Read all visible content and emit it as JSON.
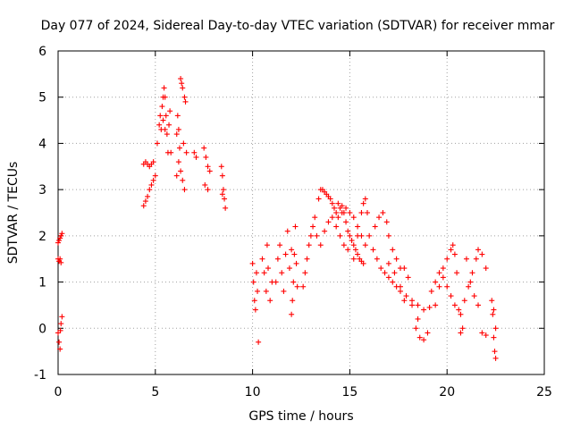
{
  "chart_data": {
    "type": "scatter",
    "title": "Day 077 of 2024, Sidereal Day-to-day VTEC variation (SDTVAR) for receiver mmar",
    "xlabel": "GPS time / hours",
    "ylabel": "SDTVAR / TECUs",
    "xlim": [
      0,
      25
    ],
    "ylim": [
      -1,
      6
    ],
    "xticks": [
      0,
      5,
      10,
      15,
      20,
      25
    ],
    "xtick_labels": [
      "0",
      "5",
      "10",
      "15",
      "20",
      "25"
    ],
    "yticks": [
      -1,
      0,
      1,
      2,
      3,
      4,
      5,
      6
    ],
    "ytick_labels": [
      "-1",
      "0",
      "1",
      "2",
      "3",
      "4",
      "5",
      "6"
    ],
    "grid": true,
    "marker": "+",
    "color": "#ff0000",
    "series": [
      {
        "name": "SDTVAR",
        "points": [
          [
            0.0,
            -0.1
          ],
          [
            0.05,
            -0.3
          ],
          [
            0.1,
            -0.45
          ],
          [
            0.15,
            0.1
          ],
          [
            0.2,
            0.25
          ],
          [
            0.12,
            -0.05
          ],
          [
            0.0,
            1.5
          ],
          [
            0.05,
            1.45
          ],
          [
            0.1,
            1.5
          ],
          [
            0.15,
            1.42
          ],
          [
            0.0,
            1.85
          ],
          [
            0.05,
            1.9
          ],
          [
            0.1,
            1.95
          ],
          [
            0.15,
            2.0
          ],
          [
            0.2,
            2.05
          ],
          [
            4.4,
            2.65
          ],
          [
            4.5,
            2.75
          ],
          [
            4.6,
            2.85
          ],
          [
            4.7,
            3.0
          ],
          [
            4.8,
            3.1
          ],
          [
            4.9,
            3.2
          ],
          [
            5.0,
            3.3
          ],
          [
            4.4,
            3.55
          ],
          [
            4.5,
            3.6
          ],
          [
            4.6,
            3.55
          ],
          [
            4.7,
            3.5
          ],
          [
            4.8,
            3.55
          ],
          [
            4.9,
            3.6
          ],
          [
            5.1,
            4.0
          ],
          [
            5.2,
            4.4
          ],
          [
            5.25,
            4.6
          ],
          [
            5.3,
            4.3
          ],
          [
            5.35,
            4.8
          ],
          [
            5.4,
            5.0
          ],
          [
            5.45,
            5.2
          ],
          [
            5.5,
            5.0
          ],
          [
            5.55,
            4.6
          ],
          [
            5.6,
            4.2
          ],
          [
            5.65,
            3.8
          ],
          [
            5.7,
            4.4
          ],
          [
            5.75,
            4.7
          ],
          [
            5.8,
            3.8
          ],
          [
            5.4,
            4.5
          ],
          [
            5.5,
            4.3
          ],
          [
            6.1,
            4.2
          ],
          [
            6.15,
            4.6
          ],
          [
            6.2,
            4.3
          ],
          [
            6.3,
            5.4
          ],
          [
            6.35,
            5.3
          ],
          [
            6.4,
            5.2
          ],
          [
            6.5,
            5.0
          ],
          [
            6.55,
            4.9
          ],
          [
            6.1,
            3.3
          ],
          [
            6.2,
            3.6
          ],
          [
            6.3,
            3.4
          ],
          [
            6.4,
            3.2
          ],
          [
            6.5,
            3.0
          ],
          [
            6.6,
            3.8
          ],
          [
            6.25,
            3.9
          ],
          [
            6.45,
            4.0
          ],
          [
            7.0,
            3.8
          ],
          [
            7.1,
            3.7
          ],
          [
            7.5,
            3.9
          ],
          [
            7.6,
            3.7
          ],
          [
            7.7,
            3.5
          ],
          [
            7.8,
            3.4
          ],
          [
            7.55,
            3.1
          ],
          [
            7.7,
            3.0
          ],
          [
            8.4,
            3.5
          ],
          [
            8.45,
            3.3
          ],
          [
            8.5,
            3.0
          ],
          [
            8.55,
            2.8
          ],
          [
            8.6,
            2.6
          ],
          [
            8.45,
            2.9
          ],
          [
            10.0,
            1.4
          ],
          [
            10.05,
            1.0
          ],
          [
            10.1,
            0.6
          ],
          [
            10.15,
            0.4
          ],
          [
            10.2,
            1.2
          ],
          [
            10.25,
            0.8
          ],
          [
            10.3,
            -0.3
          ],
          [
            10.5,
            1.5
          ],
          [
            10.6,
            1.2
          ],
          [
            10.7,
            0.8
          ],
          [
            10.8,
            1.3
          ],
          [
            10.9,
            0.6
          ],
          [
            11.0,
            1.0
          ],
          [
            10.75,
            1.8
          ],
          [
            11.2,
            1.0
          ],
          [
            11.3,
            1.5
          ],
          [
            11.4,
            1.8
          ],
          [
            11.5,
            1.2
          ],
          [
            11.6,
            0.8
          ],
          [
            11.7,
            1.6
          ],
          [
            11.8,
            2.1
          ],
          [
            11.9,
            1.3
          ],
          [
            12.0,
            0.3
          ],
          [
            12.05,
            0.6
          ],
          [
            12.1,
            1.0
          ],
          [
            12.15,
            1.6
          ],
          [
            12.2,
            2.2
          ],
          [
            12.25,
            1.4
          ],
          [
            12.3,
            0.9
          ],
          [
            12.0,
            1.7
          ],
          [
            12.6,
            0.9
          ],
          [
            12.7,
            1.2
          ],
          [
            12.8,
            1.5
          ],
          [
            12.9,
            1.8
          ],
          [
            13.0,
            2.0
          ],
          [
            13.1,
            2.2
          ],
          [
            13.2,
            2.4
          ],
          [
            13.3,
            2.0
          ],
          [
            13.4,
            2.8
          ],
          [
            13.5,
            3.0
          ],
          [
            13.6,
            3.0
          ],
          [
            13.7,
            2.95
          ],
          [
            13.8,
            2.9
          ],
          [
            13.9,
            2.85
          ],
          [
            14.0,
            2.8
          ],
          [
            14.1,
            2.7
          ],
          [
            14.2,
            2.6
          ],
          [
            14.3,
            2.5
          ],
          [
            14.4,
            2.4
          ],
          [
            14.5,
            2.6
          ],
          [
            14.6,
            2.65
          ],
          [
            14.7,
            2.5
          ],
          [
            14.8,
            2.3
          ],
          [
            14.9,
            2.1
          ],
          [
            15.0,
            2.0
          ],
          [
            15.1,
            1.9
          ],
          [
            15.2,
            1.8
          ],
          [
            15.3,
            1.7
          ],
          [
            15.4,
            1.6
          ],
          [
            15.5,
            1.5
          ],
          [
            15.6,
            1.45
          ],
          [
            15.7,
            1.4
          ],
          [
            13.5,
            1.8
          ],
          [
            13.7,
            2.1
          ],
          [
            13.9,
            2.3
          ],
          [
            14.1,
            2.4
          ],
          [
            14.3,
            2.2
          ],
          [
            14.5,
            2.0
          ],
          [
            14.7,
            1.8
          ],
          [
            14.9,
            1.7
          ],
          [
            14.4,
            2.7
          ],
          [
            14.6,
            2.5
          ],
          [
            14.8,
            2.6
          ],
          [
            15.0,
            2.5
          ],
          [
            15.2,
            2.4
          ],
          [
            15.4,
            2.2
          ],
          [
            15.6,
            2.0
          ],
          [
            15.8,
            1.8
          ],
          [
            15.2,
            1.5
          ],
          [
            15.4,
            2.0
          ],
          [
            15.6,
            2.5
          ],
          [
            15.7,
            2.7
          ],
          [
            15.8,
            2.8
          ],
          [
            15.9,
            2.5
          ],
          [
            16.0,
            2.0
          ],
          [
            16.2,
            1.7
          ],
          [
            16.3,
            2.2
          ],
          [
            16.5,
            2.4
          ],
          [
            16.7,
            2.5
          ],
          [
            16.9,
            2.3
          ],
          [
            17.0,
            2.0
          ],
          [
            17.2,
            1.7
          ],
          [
            17.4,
            1.5
          ],
          [
            17.6,
            1.3
          ],
          [
            16.4,
            1.5
          ],
          [
            16.6,
            1.3
          ],
          [
            16.8,
            1.2
          ],
          [
            17.0,
            1.1
          ],
          [
            17.2,
            1.0
          ],
          [
            17.4,
            0.9
          ],
          [
            17.6,
            0.8
          ],
          [
            17.8,
            0.6
          ],
          [
            17.0,
            1.4
          ],
          [
            17.3,
            1.2
          ],
          [
            17.6,
            0.9
          ],
          [
            17.9,
            0.7
          ],
          [
            18.2,
            0.6
          ],
          [
            18.5,
            0.5
          ],
          [
            18.8,
            0.4
          ],
          [
            19.1,
            0.45
          ],
          [
            17.8,
            1.3
          ],
          [
            18.0,
            1.1
          ],
          [
            18.2,
            0.5
          ],
          [
            18.4,
            0.0
          ],
          [
            18.6,
            -0.2
          ],
          [
            18.8,
            -0.25
          ],
          [
            19.0,
            -0.1
          ],
          [
            18.5,
            0.2
          ],
          [
            19.2,
            0.8
          ],
          [
            19.4,
            1.0
          ],
          [
            19.6,
            0.9
          ],
          [
            19.8,
            1.1
          ],
          [
            20.0,
            0.9
          ],
          [
            20.2,
            0.7
          ],
          [
            20.4,
            0.5
          ],
          [
            20.6,
            0.4
          ],
          [
            19.4,
            0.5
          ],
          [
            19.6,
            1.2
          ],
          [
            19.8,
            1.3
          ],
          [
            20.0,
            1.5
          ],
          [
            20.2,
            1.7
          ],
          [
            20.3,
            1.8
          ],
          [
            20.4,
            1.6
          ],
          [
            20.5,
            1.2
          ],
          [
            20.7,
            0.3
          ],
          [
            20.9,
            0.6
          ],
          [
            21.1,
            0.9
          ],
          [
            21.3,
            1.2
          ],
          [
            21.5,
            1.5
          ],
          [
            21.6,
            1.7
          ],
          [
            21.8,
            1.6
          ],
          [
            22.0,
            1.3
          ],
          [
            20.7,
            -0.1
          ],
          [
            20.8,
            0.0
          ],
          [
            21.0,
            1.5
          ],
          [
            21.2,
            1.0
          ],
          [
            21.4,
            0.7
          ],
          [
            21.6,
            0.5
          ],
          [
            21.8,
            -0.1
          ],
          [
            22.0,
            -0.15
          ],
          [
            22.3,
            0.6
          ],
          [
            22.35,
            0.3
          ],
          [
            22.4,
            -0.2
          ],
          [
            22.45,
            -0.5
          ],
          [
            22.5,
            -0.65
          ],
          [
            22.4,
            0.4
          ],
          [
            22.5,
            0.0
          ]
        ]
      }
    ]
  }
}
